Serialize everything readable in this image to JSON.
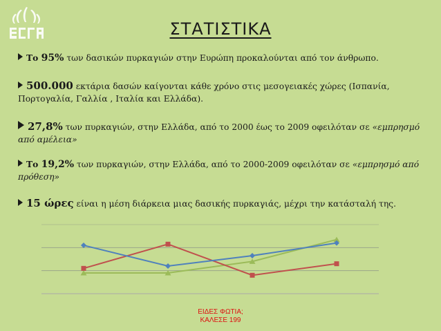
{
  "title": "ΣΤΑΤΙΣΤΙΚΑ",
  "bullets": [
    {
      "pre": "Το ",
      "value": "95%",
      "rest": " των δασικών πυρκαγιών στην Ευρώπη προκαλούνται από τον άνθρωπο.",
      "rest_italic": ""
    },
    {
      "pre": "",
      "value": "500.000",
      "rest": " εκτάρια δασών  καίγονται  κάθε χρόνο στις μεσογειακές χώρες  (Ισπανία, Πορτογαλία, Γαλλία , Ιταλία και Ελλάδα).",
      "rest_italic": ""
    },
    {
      "pre": "",
      "value": "27,8%",
      "rest": " των πυρκαγιών, στην Ελλάδα, από το 2000 έως το 2009 οφειλόταν σε ",
      "rest_italic": "«εμπρησμό από αμέλεια»"
    },
    {
      "pre": "Το ",
      "value": "19,2%",
      "rest": " των πυρκαγιών, στην Ελλάδα, από το 2000-2009 οφειλόταν σε ",
      "rest_italic": "«εμπρησμό από πρόθεση»"
    },
    {
      "pre": "",
      "value": "15 ώρες",
      "rest": " είναι η μέση διάρκεια μιας δασικής πυρκαγιάς, μέχρι την κατάσταλή της.",
      "rest_italic": ""
    }
  ],
  "footer": {
    "line1": "ΕΙΔΕΣ ΦΩΤΙΑ;",
    "line2": "ΚΑΛΕΣΕ 199"
  },
  "colors": {
    "background": "#c6dc93",
    "series1": "#4f81bd",
    "series2": "#c0504d",
    "series3": "#9bbb59",
    "footer": "#dd1111"
  },
  "chart_data": {
    "type": "line",
    "categories": [
      "",
      "",
      "",
      ""
    ],
    "series": [
      {
        "values": [
          3.1,
          2.2,
          2.65,
          3.2
        ]
      },
      {
        "values": [
          2.1,
          3.15,
          1.8,
          2.3
        ]
      },
      {
        "values": [
          1.9,
          1.9,
          2.4,
          3.35
        ]
      }
    ],
    "ylim": [
      1,
      4
    ],
    "grid": true
  }
}
